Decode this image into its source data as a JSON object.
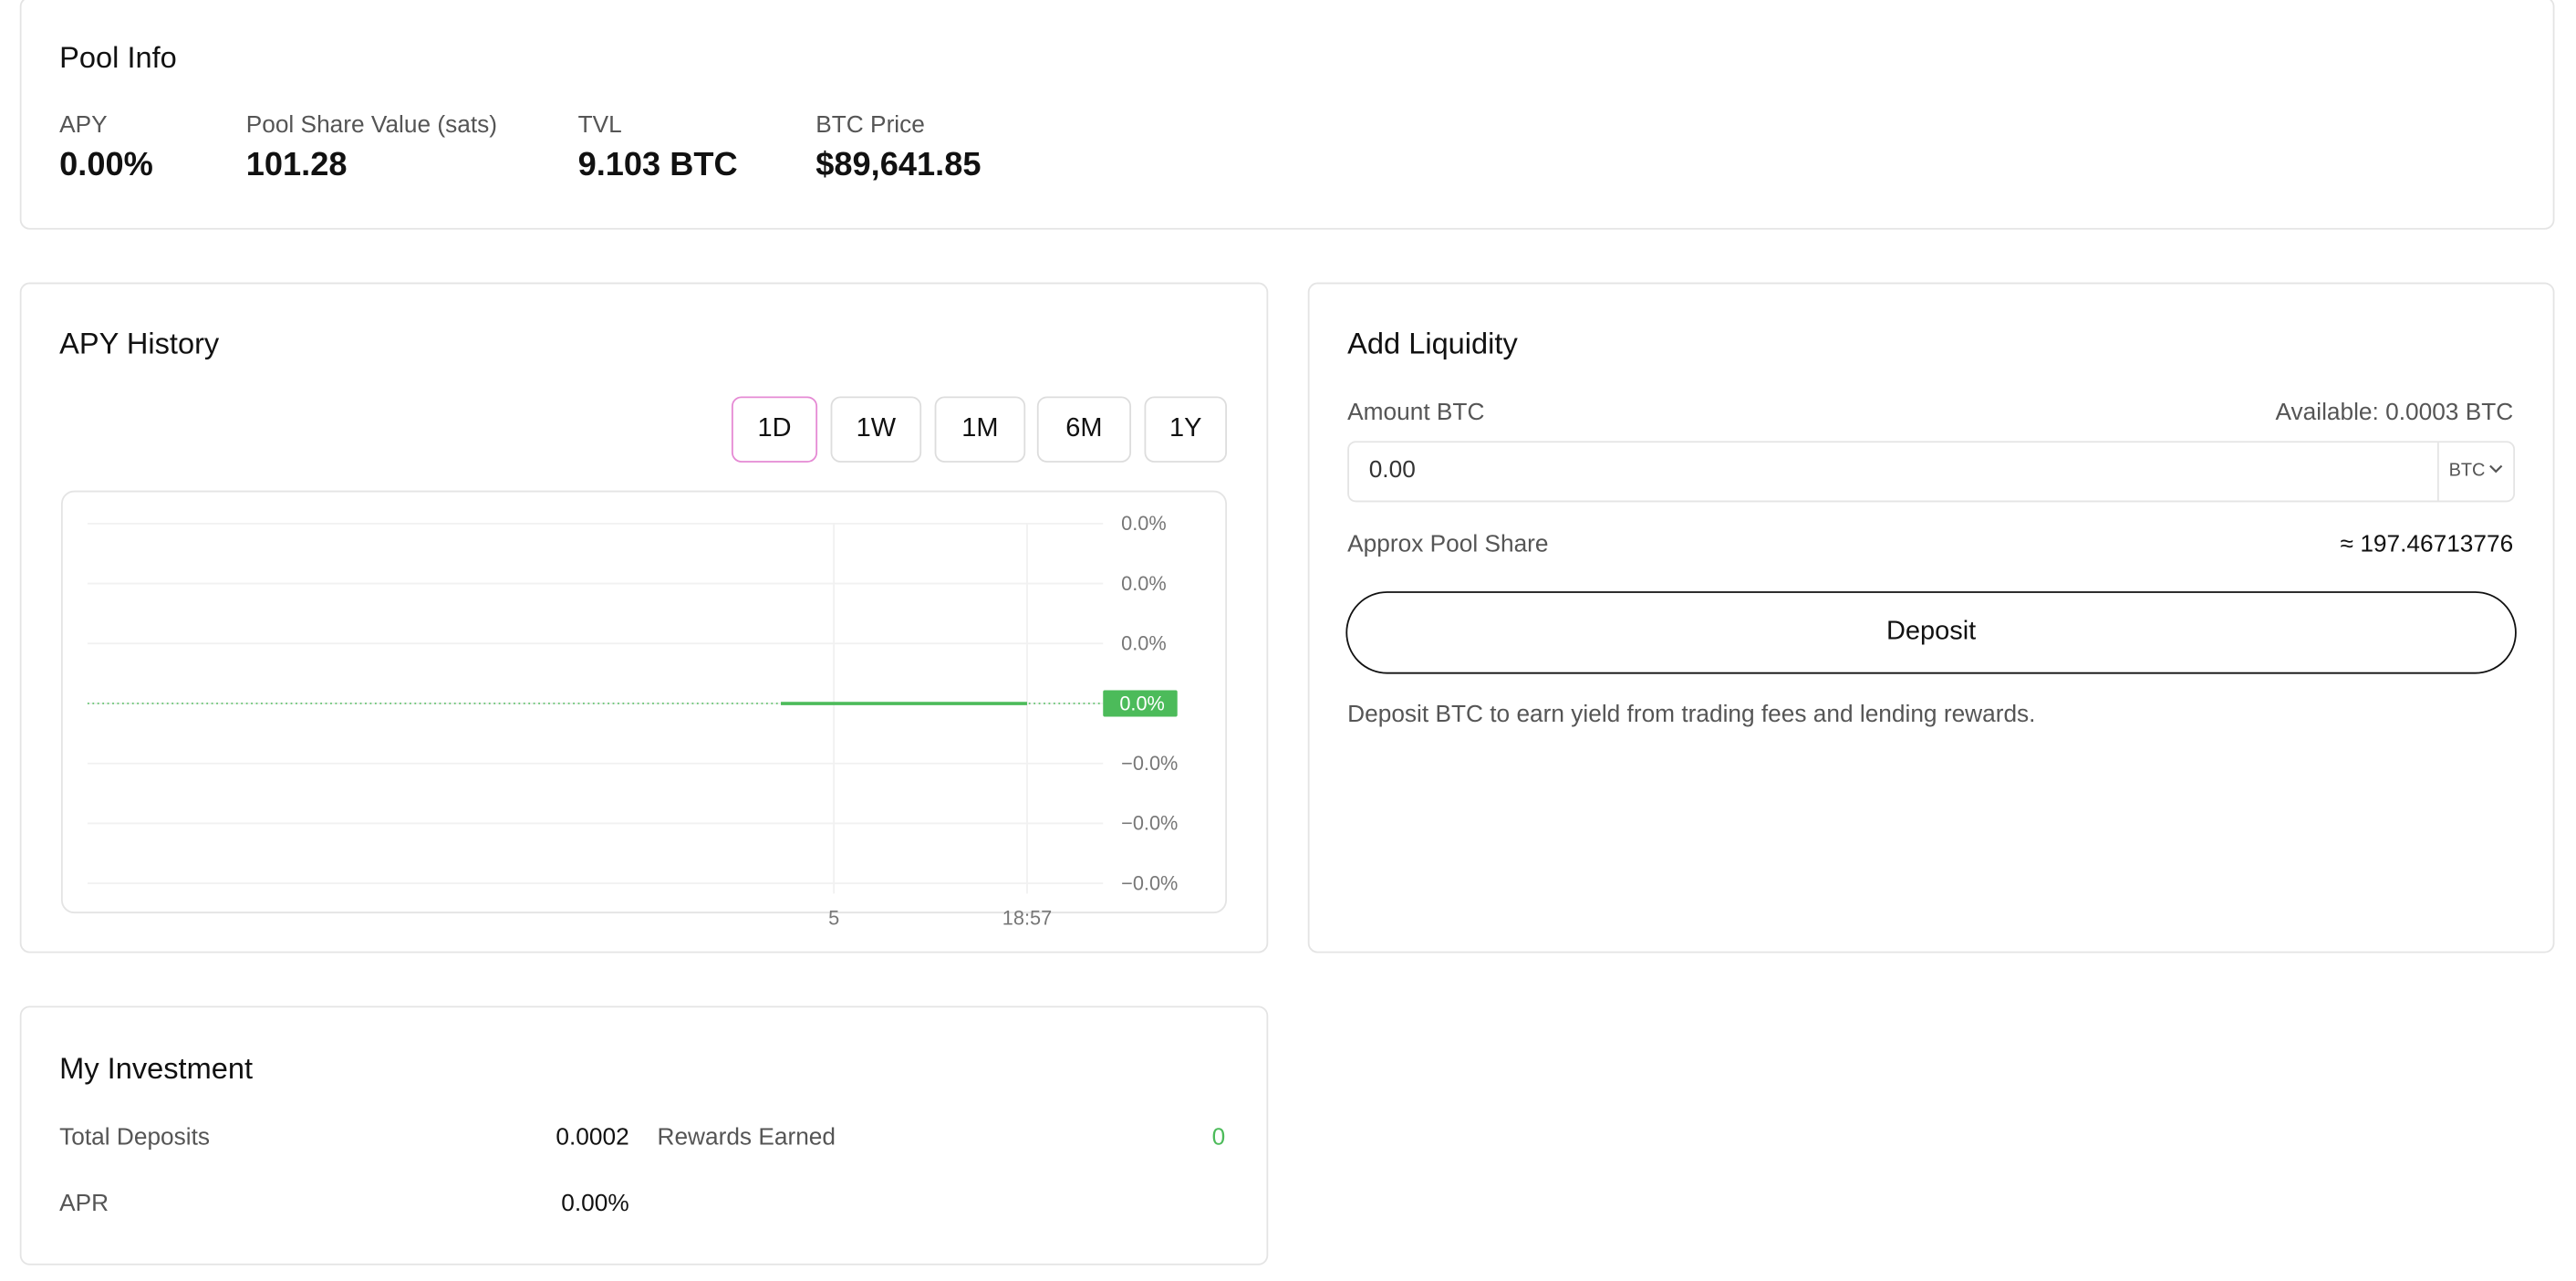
{
  "pool_info": {
    "title": "Pool Info",
    "stats": [
      {
        "label": "APY",
        "value": "0.00%"
      },
      {
        "label": "Pool Share Value (sats)",
        "value": "101.28"
      },
      {
        "label": "TVL",
        "value": "9.103 BTC"
      },
      {
        "label": "BTC Price",
        "value": "$89,641.85"
      }
    ]
  },
  "apy_history": {
    "title": "APY History",
    "ranges": [
      "1D",
      "1W",
      "1M",
      "6M",
      "1Y"
    ],
    "chart": {
      "type": "line",
      "xlim": [
        -73.2,
        26.4
      ],
      "xticks": [
        {
          "value": 0,
          "label": "5"
        },
        {
          "value": 18.95,
          "label": "18:57"
        }
      ],
      "ylim": [
        -0.0317,
        0.03
      ],
      "yticks": [
        {
          "value": 0.03,
          "label": "0.0%"
        },
        {
          "value": 0.02,
          "label": "0.0%"
        },
        {
          "value": 0.01,
          "label": "0.0%"
        },
        {
          "value": 0,
          "label": "0.0%"
        },
        {
          "value": -0.01,
          "label": "−0.0%"
        },
        {
          "value": -0.02,
          "label": "−0.0%"
        },
        {
          "value": -0.03,
          "label": "−0.0%"
        }
      ],
      "grid": true,
      "series": [
        {
          "color": "#4cbb5a",
          "x": [
            -5.2,
            18.95
          ],
          "values": [
            0,
            0
          ]
        }
      ],
      "last_value_label": "0.0%"
    }
  },
  "add_liquidity": {
    "title": "Add Liquidity",
    "amount_label": "Amount BTC",
    "available": "Available: 0.0003 BTC",
    "input_value": "0.00",
    "unit": "BTC",
    "share_label": "Approx Pool Share",
    "share_value": "≈ 197.46713776",
    "button": "Deposit",
    "note": "Deposit BTC to earn yield from trading fees and lending rewards."
  },
  "my_investment": {
    "title": "My Investment",
    "rows": [
      {
        "label": "Total Deposits",
        "value": "0.0002"
      },
      {
        "label": "Rewards Earned",
        "value": "0"
      },
      {
        "label": "APR",
        "value": "0.00%"
      }
    ]
  }
}
